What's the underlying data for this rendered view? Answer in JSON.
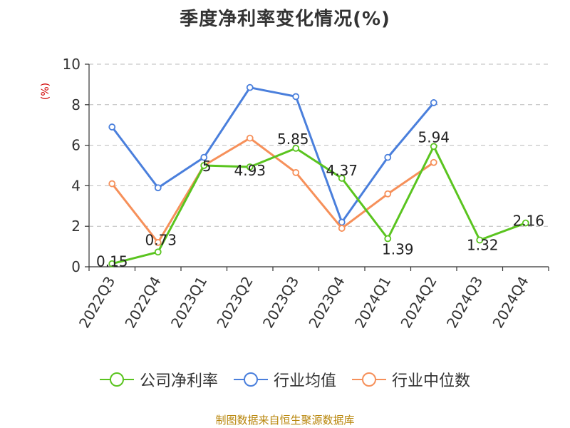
{
  "chart_data": {
    "type": "line",
    "title": "季度净利率变化情况(%)",
    "ylabel": "(%)",
    "xlabel": "",
    "categories": [
      "2022Q3",
      "2022Q4",
      "2023Q1",
      "2023Q2",
      "2023Q3",
      "2023Q4",
      "2024Q1",
      "2024Q2",
      "2024Q3",
      "2024Q4"
    ],
    "ylim": [
      0,
      10
    ],
    "yticks": [
      "0",
      "2",
      "4",
      "6",
      "8",
      "10"
    ],
    "grid": true,
    "legend_position": "bottom",
    "series": [
      {
        "name": "公司净利率",
        "color": "#5ac41f",
        "values": [
          0.15,
          0.73,
          5,
          4.93,
          5.85,
          4.37,
          1.39,
          5.94,
          1.32,
          2.16
        ],
        "labels": [
          "0.15",
          "0.73",
          "5",
          "4.93",
          "5.85",
          "4.37",
          "1.39",
          "5.94",
          "1.32",
          "2.16"
        ]
      },
      {
        "name": "行业均值",
        "color": "#4a7fdc",
        "values": [
          6.9,
          3.9,
          5.4,
          8.85,
          8.4,
          2.2,
          5.4,
          8.1,
          null,
          null
        ]
      },
      {
        "name": "行业中位数",
        "color": "#f6905a",
        "values": [
          4.1,
          1.2,
          5.0,
          6.35,
          4.65,
          1.9,
          3.6,
          5.15,
          null,
          null
        ]
      }
    ]
  },
  "footer": "制图数据来自恒生聚源数据库"
}
